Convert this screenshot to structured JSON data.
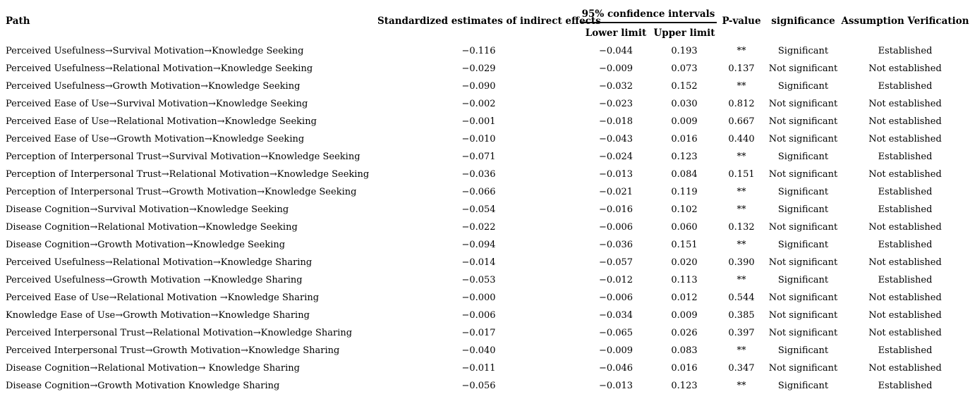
{
  "table": {
    "headers": {
      "path": "Path",
      "estimates": "Standardized estimates of indirect effects",
      "ci_group": "95% confidence intervals",
      "lower": "Lower limit",
      "upper": "Upper limit",
      "p_value": "P-value",
      "significance": "significance",
      "verification": "Assumption Verification"
    },
    "rows": [
      {
        "path": "Perceived Usefulness→Survival Motivation→Knowledge Seeking",
        "estimate": "−0.116",
        "lower": "−0.044",
        "upper": "0.193",
        "p_value": "**",
        "significance": "Significant",
        "verification": "Established"
      },
      {
        "path": "Perceived Usefulness→Relational Motivation→Knowledge Seeking",
        "estimate": "−0.029",
        "lower": "−0.009",
        "upper": "0.073",
        "p_value": "0.137",
        "significance": "Not significant",
        "verification": "Not established"
      },
      {
        "path": "Perceived Usefulness→Growth Motivation→Knowledge Seeking",
        "estimate": "−0.090",
        "lower": "−0.032",
        "upper": "0.152",
        "p_value": "**",
        "significance": "Significant",
        "verification": "Established"
      },
      {
        "path": "Perceived Ease of Use→Survival Motivation→Knowledge Seeking",
        "estimate": "−0.002",
        "lower": "−0.023",
        "upper": "0.030",
        "p_value": "0.812",
        "significance": "Not significant",
        "verification": "Not established"
      },
      {
        "path": "Perceived Ease of Use→Relational Motivation→Knowledge Seeking",
        "estimate": "−0.001",
        "lower": "−0.018",
        "upper": "0.009",
        "p_value": "0.667",
        "significance": "Not significant",
        "verification": "Not established"
      },
      {
        "path": "Perceived Ease of Use→Growth Motivation→Knowledge Seeking",
        "estimate": "−0.010",
        "lower": "−0.043",
        "upper": "0.016",
        "p_value": "0.440",
        "significance": "Not significant",
        "verification": "Not established"
      },
      {
        "path": "Perception of Interpersonal Trust→Survival Motivation→Knowledge Seeking",
        "estimate": "−0.071",
        "lower": "−0.024",
        "upper": "0.123",
        "p_value": "**",
        "significance": "Significant",
        "verification": "Established"
      },
      {
        "path": "Perception of Interpersonal Trust→Relational Motivation→Knowledge Seeking",
        "estimate": "−0.036",
        "lower": "−0.013",
        "upper": "0.084",
        "p_value": "0.151",
        "significance": "Not significant",
        "verification": "Not established"
      },
      {
        "path": "Perception of Interpersonal Trust→Growth Motivation→Knowledge Seeking",
        "estimate": "−0.066",
        "lower": "−0.021",
        "upper": "0.119",
        "p_value": "**",
        "significance": "Significant",
        "verification": "Established"
      },
      {
        "path": "Disease Cognition→Survival Motivation→Knowledge Seeking",
        "estimate": "−0.054",
        "lower": "−0.016",
        "upper": "0.102",
        "p_value": "**",
        "significance": "Significant",
        "verification": "Established"
      },
      {
        "path": "Disease Cognition→Relational Motivation→Knowledge Seeking",
        "estimate": "−0.022",
        "lower": "−0.006",
        "upper": "0.060",
        "p_value": "0.132",
        "significance": "Not significant",
        "verification": "Not established"
      },
      {
        "path": "Disease Cognition→Growth Motivation→Knowledge Seeking",
        "estimate": "−0.094",
        "lower": "−0.036",
        "upper": "0.151",
        "p_value": "**",
        "significance": "Significant",
        "verification": "Established"
      },
      {
        "path": "Perceived Usefulness→Relational Motivation→Knowledge Sharing",
        "estimate": "−0.014",
        "lower": "−0.057",
        "upper": "0.020",
        "p_value": "0.390",
        "significance": "Not significant",
        "verification": "Not established"
      },
      {
        "path": "Perceived Usefulness→Growth Motivation →Knowledge Sharing",
        "estimate": "−0.053",
        "lower": "−0.012",
        "upper": "0.113",
        "p_value": "**",
        "significance": "Significant",
        "verification": "Established"
      },
      {
        "path": "Perceived Ease of Use→Relational Motivation →Knowledge Sharing",
        "estimate": "−0.000",
        "lower": "−0.006",
        "upper": "0.012",
        "p_value": "0.544",
        "significance": "Not significant",
        "verification": "Not established"
      },
      {
        "path": "Knowledge Ease of Use→Growth Motivation→Knowledge Sharing",
        "estimate": "−0.006",
        "lower": "−0.034",
        "upper": "0.009",
        "p_value": "0.385",
        "significance": "Not significant",
        "verification": "Not established"
      },
      {
        "path": "Perceived Interpersonal Trust→Relational Motivation→Knowledge Sharing",
        "estimate": "−0.017",
        "lower": "−0.065",
        "upper": "0.026",
        "p_value": "0.397",
        "significance": "Not significant",
        "verification": "Not established"
      },
      {
        "path": "Perceived Interpersonal Trust→Growth Motivation→Knowledge Sharing",
        "estimate": "−0.040",
        "lower": "−0.009",
        "upper": "0.083",
        "p_value": "**",
        "significance": "Significant",
        "verification": "Established"
      },
      {
        "path": "Disease Cognition→Relational Motivation→ Knowledge Sharing",
        "estimate": "−0.011",
        "lower": "−0.046",
        "upper": "0.016",
        "p_value": "0.347",
        "significance": "Not significant",
        "verification": "Not established"
      },
      {
        "path": "Disease Cognition→Growth Motivation Knowledge Sharing",
        "estimate": "−0.056",
        "lower": "−0.013",
        "upper": "0.123",
        "p_value": "**",
        "significance": "Significant",
        "verification": "Established"
      }
    ]
  },
  "colors": {
    "text": "#000000",
    "background": "#ffffff",
    "ci_rule": "#111111",
    "bottom_rule": "#555555"
  }
}
